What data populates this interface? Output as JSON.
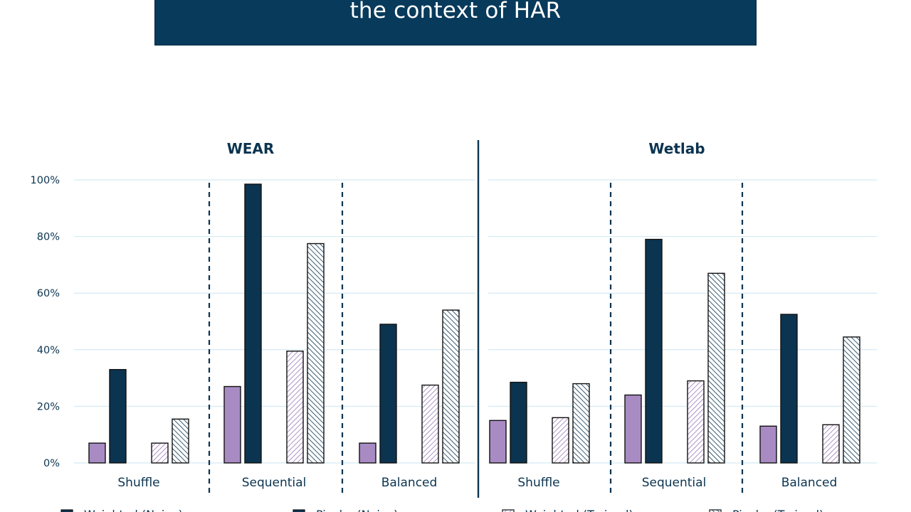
{
  "slide": {
    "title": "the context of HAR"
  },
  "colors": {
    "banner": "#073a5b",
    "navy": "#0b3450",
    "purple": "#a98bc4",
    "grid": "#cbe6f1"
  },
  "chart_data": {
    "type": "bar",
    "y_ticks": [
      "0%",
      "20%",
      "40%",
      "60%",
      "80%",
      "100%"
    ],
    "ylim": [
      0,
      100
    ],
    "categories": [
      "Shuffle",
      "Sequential",
      "Balanced"
    ],
    "series": [
      {
        "name": "Weighted (Naive)",
        "style": "solid-purple"
      },
      {
        "name": "Pixel... (Naive)",
        "style": "solid-navy"
      },
      {
        "name": "Weighted (Trained)",
        "style": "hatch-purple"
      },
      {
        "name": "Pixel... (Trained)",
        "style": "hatch-navy"
      }
    ],
    "panels": [
      {
        "title": "WEAR",
        "values": [
          [
            7,
            33,
            7,
            15.5
          ],
          [
            27,
            98.5,
            39.5,
            77.5
          ],
          [
            7,
            49,
            27.5,
            54
          ]
        ]
      },
      {
        "title": "Wetlab",
        "values": [
          [
            15,
            28.5,
            16,
            28
          ],
          [
            24,
            79,
            29,
            67
          ],
          [
            13,
            52.5,
            13.5,
            44.5
          ]
        ]
      }
    ]
  }
}
